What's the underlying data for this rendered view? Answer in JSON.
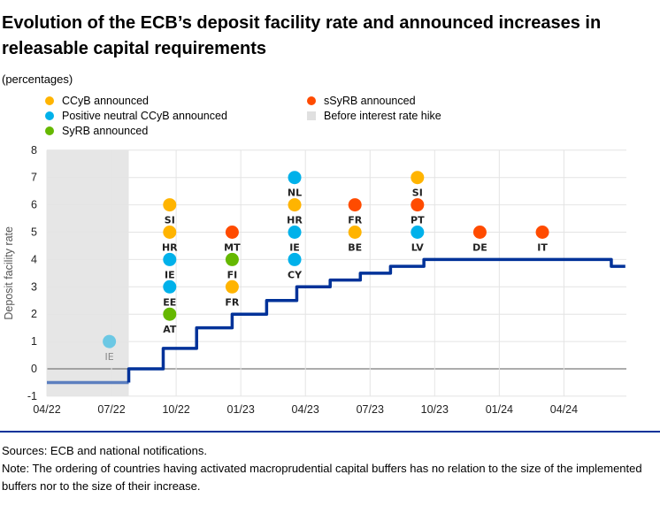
{
  "title": "Evolution of the ECB’s deposit facility rate and announced increases in releasable capital requirements",
  "unit": "(percentages)",
  "sources": "Sources: ECB and national notifications.",
  "note": "Note: The ordering of countries having activated macroprudential capital buffers has no relation to the size of the implemented buffers nor to the size of their increase.",
  "chart_data": {
    "type": "scatter+step-line",
    "ylabel": "Deposit facility rate",
    "ylim": [
      -1,
      8
    ],
    "yticks": [
      -1,
      0,
      1,
      2,
      3,
      4,
      5,
      6,
      7,
      8
    ],
    "x_unit": "months since 04/22",
    "xlim": [
      0,
      26.85
    ],
    "xticks": [
      {
        "v": 0,
        "label": "04/22"
      },
      {
        "v": 3,
        "label": "07/22"
      },
      {
        "v": 6,
        "label": "10/22"
      },
      {
        "v": 9,
        "label": "01/23"
      },
      {
        "v": 12,
        "label": "04/23"
      },
      {
        "v": 15,
        "label": "07/23"
      },
      {
        "v": 18,
        "label": "10/23"
      },
      {
        "v": 21,
        "label": "01/24"
      },
      {
        "v": 24,
        "label": "04/24"
      }
    ],
    "shaded_region": {
      "label": "Before interest rate hike",
      "x": [
        0,
        3.8
      ],
      "color": "#e6e6e6"
    },
    "legend": [
      {
        "key": "ccyb",
        "label": "CCyB announced",
        "color": "#FFB400"
      },
      {
        "key": "pnccyb",
        "label": "Positive neutral CCyB announced",
        "color": "#00B1EA"
      },
      {
        "key": "syrb",
        "label": "SyRB announced",
        "color": "#65B800"
      },
      {
        "key": "ssyrb",
        "label": "sSyRB announced",
        "color": "#FF4B00"
      },
      {
        "key": "shade",
        "label": "Before interest rate hike",
        "color": "#e6e6e6"
      }
    ],
    "rate_series": {
      "name": "Deposit facility rate",
      "color": "#003299",
      "pre_hike_color": "#5C7FBF",
      "steps": [
        [
          0,
          -0.5
        ],
        [
          3.8,
          0
        ],
        [
          5.4,
          0.75
        ],
        [
          6.95,
          1.5
        ],
        [
          8.6,
          2
        ],
        [
          10.2,
          2.5
        ],
        [
          11.6,
          3
        ],
        [
          13.15,
          3.25
        ],
        [
          14.55,
          3.5
        ],
        [
          15.95,
          3.75
        ],
        [
          17.5,
          4
        ],
        [
          26.2,
          3.75
        ],
        [
          26.85,
          3.75
        ]
      ]
    },
    "points": [
      {
        "x": 2.9,
        "y": 1,
        "label": "IE",
        "type": "pnccyb_pre"
      },
      {
        "x": 5.7,
        "y": 6,
        "label": "SI",
        "type": "ccyb"
      },
      {
        "x": 5.7,
        "y": 5,
        "label": "HR",
        "type": "ccyb"
      },
      {
        "x": 5.7,
        "y": 4,
        "label": "IE",
        "type": "pnccyb"
      },
      {
        "x": 5.7,
        "y": 3,
        "label": "EE",
        "type": "pnccyb"
      },
      {
        "x": 5.7,
        "y": 2,
        "label": "AT",
        "type": "syrb"
      },
      {
        "x": 8.6,
        "y": 5,
        "label": "MT",
        "type": "ssyrb"
      },
      {
        "x": 8.6,
        "y": 4,
        "label": "FI",
        "type": "syrb"
      },
      {
        "x": 8.6,
        "y": 3,
        "label": "FR",
        "type": "ccyb"
      },
      {
        "x": 11.5,
        "y": 7,
        "label": "NL",
        "type": "pnccyb"
      },
      {
        "x": 11.5,
        "y": 6,
        "label": "HR",
        "type": "ccyb"
      },
      {
        "x": 11.5,
        "y": 5,
        "label": "IE",
        "type": "pnccyb"
      },
      {
        "x": 11.5,
        "y": 4,
        "label": "CY",
        "type": "pnccyb"
      },
      {
        "x": 14.3,
        "y": 6,
        "label": "FR",
        "type": "ssyrb"
      },
      {
        "x": 14.3,
        "y": 5,
        "label": "BE",
        "type": "ccyb"
      },
      {
        "x": 17.2,
        "y": 7,
        "label": "SI",
        "type": "ccyb"
      },
      {
        "x": 17.2,
        "y": 6,
        "label": "PT",
        "type": "ssyrb"
      },
      {
        "x": 17.2,
        "y": 5,
        "label": "LV",
        "type": "pnccyb"
      },
      {
        "x": 20.1,
        "y": 5,
        "label": "DE",
        "type": "ssyrb"
      },
      {
        "x": 23.0,
        "y": 5,
        "label": "IT",
        "type": "ssyrb"
      }
    ],
    "type_colors": {
      "ccyb": "#FFB400",
      "pnccyb": "#00B1EA",
      "syrb": "#65B800",
      "ssyrb": "#FF4B00",
      "pnccyb_pre": "#6CC8E4"
    }
  }
}
